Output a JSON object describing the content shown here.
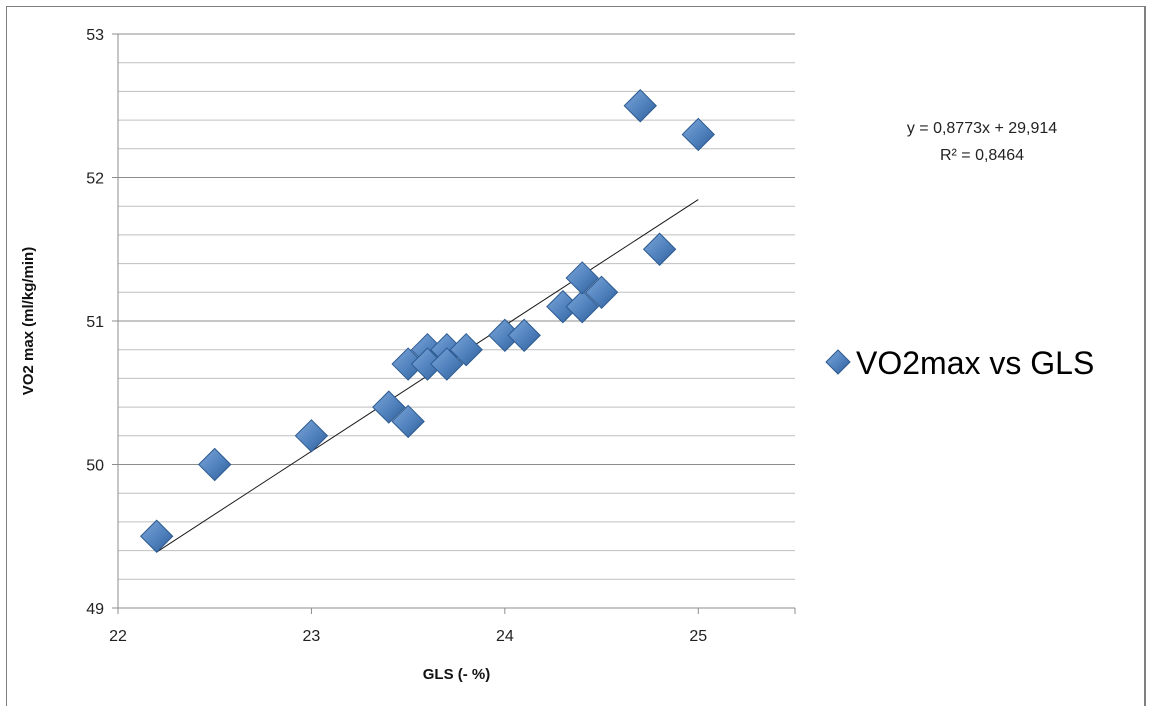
{
  "chart_data": {
    "type": "scatter",
    "xlabel": "GLS (- %)",
    "ylabel": "VO2 max (ml/kg/min)",
    "xlim": [
      22,
      25.5
    ],
    "ylim": [
      49,
      53
    ],
    "x_ticks": [
      "22",
      "23",
      "24",
      "25"
    ],
    "y_ticks": [
      "49",
      "50",
      "51",
      "52",
      "53"
    ],
    "grid": "horizontal",
    "legend_position": "right",
    "series": [
      {
        "name": "VO2max vs GLS",
        "color": "#4f81bd",
        "marker": "diamond",
        "points": [
          {
            "x": 22.2,
            "y": 49.5
          },
          {
            "x": 22.5,
            "y": 50.0
          },
          {
            "x": 23.0,
            "y": 50.2
          },
          {
            "x": 23.4,
            "y": 50.4
          },
          {
            "x": 23.5,
            "y": 50.3
          },
          {
            "x": 23.5,
            "y": 50.7
          },
          {
            "x": 23.6,
            "y": 50.8
          },
          {
            "x": 23.6,
            "y": 50.7
          },
          {
            "x": 23.7,
            "y": 50.8
          },
          {
            "x": 23.7,
            "y": 50.7
          },
          {
            "x": 23.8,
            "y": 50.8
          },
          {
            "x": 24.0,
            "y": 50.9
          },
          {
            "x": 24.1,
            "y": 50.9
          },
          {
            "x": 24.3,
            "y": 51.1
          },
          {
            "x": 24.4,
            "y": 51.1
          },
          {
            "x": 24.4,
            "y": 51.3
          },
          {
            "x": 24.5,
            "y": 51.2
          },
          {
            "x": 24.7,
            "y": 52.5
          },
          {
            "x": 24.8,
            "y": 51.5
          },
          {
            "x": 25.0,
            "y": 52.3
          }
        ]
      }
    ],
    "trendline": {
      "slope": 0.8773,
      "intercept": 29.914,
      "x_range": [
        22.2,
        25.0
      ],
      "equation_text": "y = 0,8773x + 29,914",
      "r2_text": "R² = 0,8464"
    }
  }
}
